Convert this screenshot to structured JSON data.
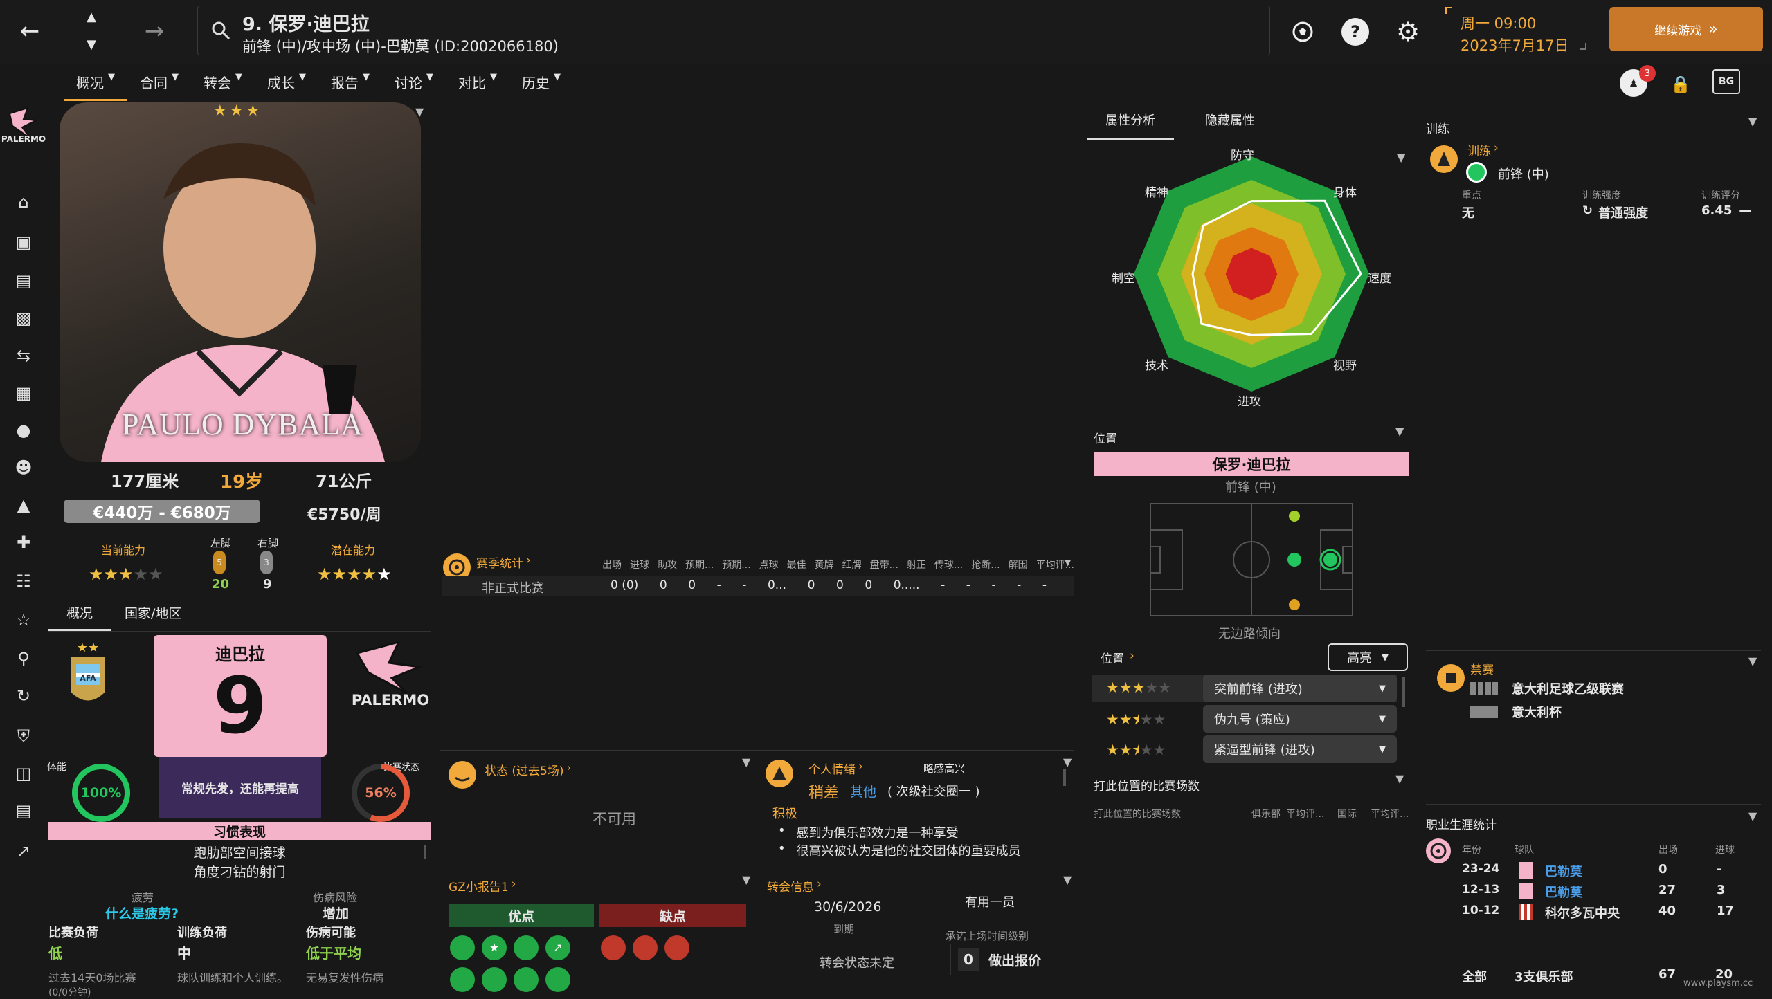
{
  "topbar": {
    "title": "9. 保罗·迪巴拉",
    "subtitle": "前锋 (中)/攻中场 (中)-巴勒莫 (ID:2002066180)",
    "date_line1": "周一 09:00",
    "date_line2": "2023年7月17日",
    "continue_label": "继续游戏",
    "inbox_count": "3",
    "icon_badge": "BG"
  },
  "nav_tabs": [
    "概况",
    "合同",
    "转会",
    "成长",
    "报告",
    "讨论",
    "对比",
    "历史"
  ],
  "club": {
    "name": "PALERMO"
  },
  "player": {
    "photo_caption": "PAULO DYBALA",
    "height": "177厘米",
    "age": "19岁",
    "weight": "71公斤",
    "value": "€440万 - €680万",
    "wage": "€5750/周",
    "current_ability_label": "当前能力",
    "potential_ability_label": "潜在能力",
    "left_foot_label": "左脚",
    "right_foot_label": "右脚",
    "left_foot_value": "20",
    "right_foot_value": "9",
    "left_foot_badge": "5",
    "right_foot_badge": "3",
    "current_stars": 3,
    "potential_stars": 5
  },
  "subtabs": [
    "概况",
    "国家/地区"
  ],
  "shirt": {
    "name": "迪巴拉",
    "number": "9"
  },
  "condition": {
    "label": "体能",
    "value": "100%",
    "percent": 100,
    "form_label": "比赛状态",
    "form_value": "56%",
    "form_percent": 56,
    "desc": "常规先发，还能再提高"
  },
  "habits": {
    "title": "习惯表现",
    "items": [
      "跑肋部空间接球",
      "角度刁钻的射门"
    ]
  },
  "fatigue": {
    "label": "疲劳",
    "link": "什么是疲劳?",
    "injury_risk_label": "伤病风险",
    "injury_risk_value": "增加",
    "match_load_label": "比赛负荷",
    "match_load_value": "低",
    "training_load_label": "训练负荷",
    "training_load_value": "中",
    "injury_chance_label": "伤病可能",
    "injury_chance_value": "低于平均",
    "match_load_desc": "过去14天0场比赛",
    "training_load_desc": "球队训练和个人训练。",
    "injury_chance_desc": "无易复发性伤病",
    "match_load_extra": "(0/0分钟)"
  },
  "season_stats": {
    "title": "赛季统计",
    "columns": [
      "出场",
      "进球",
      "助攻",
      "预期...",
      "预期...",
      "点球",
      "最佳",
      "黄牌",
      "红牌",
      "盘带...",
      "射正",
      "传球...",
      "抢断...",
      "解围",
      "平均评..."
    ],
    "row_label": "非正式比赛",
    "row": [
      "0 (0)",
      "0",
      "0",
      "-",
      "-",
      "0...",
      "0",
      "0",
      "0",
      "0.....",
      "-",
      "-",
      "-",
      "-",
      "-"
    ]
  },
  "status": {
    "title": "状态 (过去5场)",
    "unavailable": "不可用"
  },
  "mood": {
    "title": "个人情绪",
    "mood_value": "略感高兴",
    "social_label": "稍差",
    "social_group": "其他",
    "social_detail": "( 次级社交圈一 )",
    "positive_label": "积极",
    "bullets": [
      "感到为俱乐部效力是一种享受",
      "很高兴被认为是他的社交团体的重要成员"
    ]
  },
  "report": {
    "title": "GZ小报告1",
    "pros_label": "优点",
    "cons_label": "缺点"
  },
  "transfer": {
    "title": "转会信息",
    "contract_end": "30/6/2026",
    "contract_end_label": "到期",
    "squad_status": "有用一员",
    "squad_status_label": "承诺上场时间级别",
    "transfer_status": "转会状态未定",
    "offers_count": "0",
    "offers_label": "做出报价"
  },
  "attributes": {
    "tabs": [
      "属性分析",
      "隐藏属性"
    ],
    "axes": [
      "防守",
      "身体",
      "速度",
      "视野",
      "进攻",
      "技术",
      "制空",
      "精神"
    ],
    "values": [
      0.62,
      0.88,
      0.93,
      0.72,
      0.52,
      0.6,
      0.5,
      0.58
    ]
  },
  "position": {
    "title": "位置",
    "player_name": "保罗·迪巴拉",
    "primary_position": "前锋 (中)",
    "flank_pref": "无边路倾向",
    "roles_title": "位置",
    "highlight_label": "高亮",
    "roles": [
      {
        "name": "突前前锋 (进攻)",
        "stars": 3
      },
      {
        "name": "伪九号 (策应)",
        "stars": 2.5
      },
      {
        "name": "紧逼型前锋 (进攻)",
        "stars": 2.5
      }
    ],
    "matches_title": "打此位置的比赛场数",
    "matches_columns": [
      "打此位置的比赛场数",
      "俱乐部",
      "平均评...",
      "国际",
      "平均评..."
    ]
  },
  "training": {
    "section": "训练",
    "title": "训练",
    "position": "前锋 (中)",
    "focus_label": "重点",
    "focus_value": "无",
    "intensity_label": "训练强度",
    "intensity_value": "普通强度",
    "rating_label": "训练评分",
    "rating_value": "6.45"
  },
  "suspension": {
    "title": "禁赛",
    "competitions": [
      "意大利足球乙级联赛",
      "意大利杯"
    ]
  },
  "career": {
    "title": "职业生涯统计",
    "columns": [
      "年份",
      "球队",
      "出场",
      "进球"
    ],
    "rows": [
      {
        "year": "23-24",
        "team": "巴勒莫",
        "apps": "0",
        "goals": "-"
      },
      {
        "year": "12-13",
        "team": "巴勒莫",
        "apps": "27",
        "goals": "3"
      },
      {
        "year": "10-12",
        "team": "科尔多瓦中央",
        "apps": "40",
        "goals": "17"
      }
    ],
    "total_label": "全部",
    "total_clubs": "3支俱乐部",
    "total_apps": "67",
    "total_goals": "20"
  },
  "watermark": "www.playsm.cc",
  "colors": {
    "accent": "#f0a93a",
    "pink": "#f4b3c8",
    "green": "#22c55e",
    "red": "#c0392b"
  }
}
